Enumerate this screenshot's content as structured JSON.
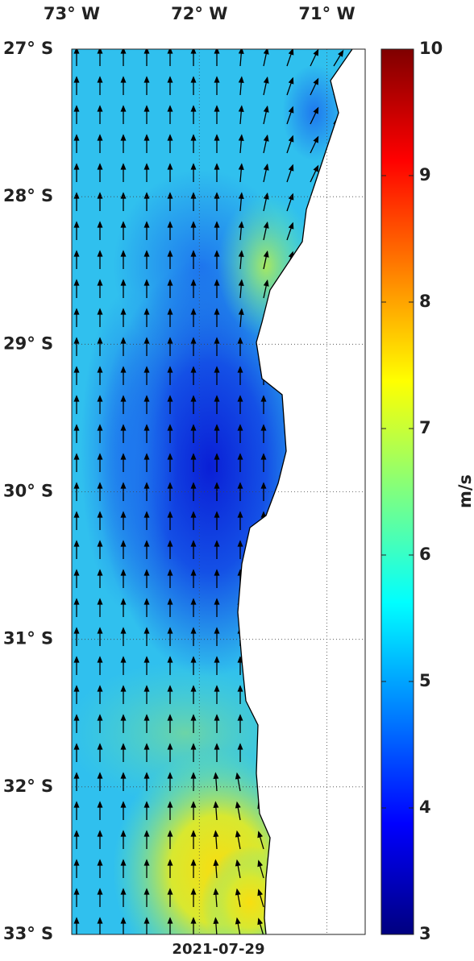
{
  "map": {
    "lon_lim": [
      -73,
      -70.7
    ],
    "lat_lim": [
      -33,
      -27
    ],
    "lon_ticks": [
      {
        "value": -73,
        "label": "73° W"
      },
      {
        "value": -72,
        "label": "72° W"
      },
      {
        "value": -71,
        "label": "71° W"
      }
    ],
    "lat_ticks": [
      {
        "value": -27,
        "label": "27° S"
      },
      {
        "value": -28,
        "label": "28° S"
      },
      {
        "value": -29,
        "label": "29° S"
      },
      {
        "value": -30,
        "label": "30° S"
      },
      {
        "value": -31,
        "label": "31° S"
      },
      {
        "value": -32,
        "label": "32° S"
      },
      {
        "value": -33,
        "label": "33° S"
      }
    ],
    "date": "2021-07-29",
    "colorbar": {
      "lim": [
        3,
        10
      ],
      "ticks": [
        3,
        4,
        5,
        6,
        7,
        8,
        9,
        10
      ],
      "label": "m/s"
    }
  }
}
